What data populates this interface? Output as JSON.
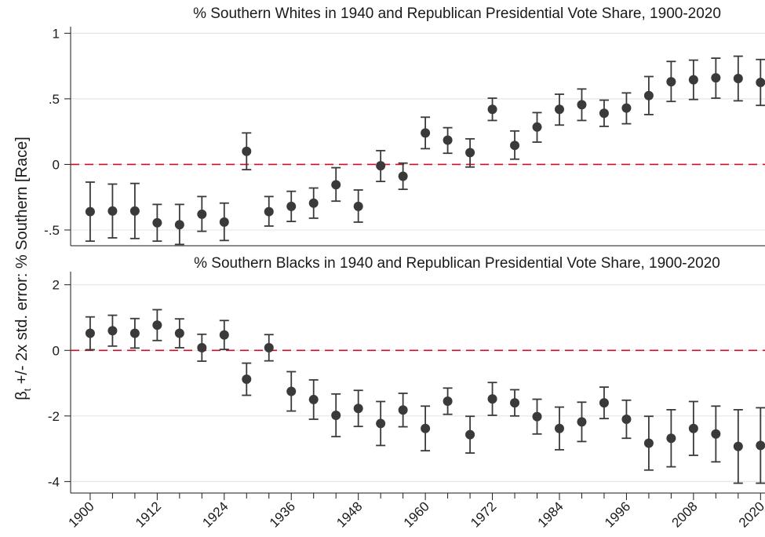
{
  "ylabel": {
    "beta": "β",
    "subscript": "t",
    "rest": " +/- 2x std. error: % Southern [Race]"
  },
  "colors": {
    "point": "#3a3a3a",
    "zero_line": "#c8102e",
    "grid": "#e6e6e6",
    "axis": "#1a1a1a",
    "panel_header_bg": "#ffffff"
  },
  "chart_data": [
    {
      "type": "scatter",
      "title": "% Southern Whites in 1940 and Republican Presidential Vote Share, 1900-2020",
      "xlabel": "",
      "ylabel": "",
      "ylim": [
        -0.62,
        1.05
      ],
      "yticks": [
        1,
        0.5,
        0,
        -0.5
      ],
      "ytick_labels": [
        "1",
        ".5",
        "0",
        "-.5"
      ],
      "reference_line": 0,
      "grid": true,
      "x": [
        1900,
        1904,
        1908,
        1912,
        1916,
        1920,
        1924,
        1928,
        1932,
        1936,
        1940,
        1944,
        1948,
        1952,
        1956,
        1960,
        1964,
        1968,
        1972,
        1976,
        1980,
        1984,
        1988,
        1992,
        1996,
        2000,
        2004,
        2008,
        2012,
        2016,
        2020
      ],
      "values": [
        -0.36,
        -0.355,
        -0.355,
        -0.445,
        -0.46,
        -0.38,
        -0.44,
        0.1,
        -0.36,
        -0.32,
        -0.295,
        -0.155,
        -0.32,
        -0.01,
        -0.09,
        0.24,
        0.185,
        0.09,
        0.42,
        0.145,
        0.285,
        0.42,
        0.455,
        0.39,
        0.43,
        0.525,
        0.63,
        0.645,
        0.66,
        0.655,
        0.625
      ],
      "lower": [
        -0.585,
        -0.56,
        -0.565,
        -0.585,
        -0.61,
        -0.51,
        -0.58,
        -0.04,
        -0.47,
        -0.435,
        -0.41,
        -0.28,
        -0.44,
        -0.13,
        -0.19,
        0.12,
        0.085,
        -0.02,
        0.335,
        0.04,
        0.17,
        0.3,
        0.335,
        0.29,
        0.31,
        0.38,
        0.48,
        0.495,
        0.505,
        0.485,
        0.45
      ],
      "upper": [
        -0.135,
        -0.15,
        -0.145,
        -0.305,
        -0.305,
        -0.245,
        -0.295,
        0.24,
        -0.245,
        -0.205,
        -0.18,
        -0.025,
        -0.195,
        0.105,
        0.01,
        0.36,
        0.28,
        0.195,
        0.505,
        0.255,
        0.395,
        0.535,
        0.575,
        0.49,
        0.545,
        0.67,
        0.785,
        0.795,
        0.81,
        0.825,
        0.8
      ]
    },
    {
      "type": "scatter",
      "title": "% Southern Blacks in 1940 and Republican Presidential Vote Share, 1900-2020",
      "xlabel": "",
      "ylabel": "",
      "ylim": [
        -4.35,
        2.4
      ],
      "yticks": [
        2,
        0,
        -2,
        -4
      ],
      "ytick_labels": [
        "2",
        "0",
        "-2",
        "-4"
      ],
      "reference_line": 0,
      "grid": true,
      "x": [
        1900,
        1904,
        1908,
        1912,
        1916,
        1920,
        1924,
        1928,
        1932,
        1936,
        1940,
        1944,
        1948,
        1952,
        1956,
        1960,
        1964,
        1968,
        1972,
        1976,
        1980,
        1984,
        1988,
        1992,
        1996,
        2000,
        2004,
        2008,
        2012,
        2016,
        2020
      ],
      "values": [
        0.52,
        0.6,
        0.52,
        0.77,
        0.52,
        0.08,
        0.47,
        -0.88,
        0.08,
        -1.25,
        -1.5,
        -1.98,
        -1.77,
        -2.23,
        -1.82,
        -2.38,
        -1.55,
        -2.57,
        -1.48,
        -1.6,
        -2.02,
        -2.38,
        -2.18,
        -1.6,
        -2.1,
        -2.83,
        -2.68,
        -2.38,
        -2.55,
        -2.93,
        -2.9
      ],
      "lower": [
        0.02,
        0.13,
        0.07,
        0.3,
        0.08,
        -0.33,
        0.03,
        -1.37,
        -0.32,
        -1.85,
        -2.1,
        -2.63,
        -2.32,
        -2.9,
        -2.33,
        -3.06,
        -1.95,
        -3.13,
        -1.98,
        -2.0,
        -2.55,
        -3.03,
        -2.78,
        -2.08,
        -2.68,
        -3.65,
        -3.55,
        -3.2,
        -3.4,
        -4.05,
        -4.05
      ],
      "upper": [
        1.02,
        1.07,
        0.97,
        1.24,
        0.96,
        0.49,
        0.91,
        -0.39,
        0.48,
        -0.65,
        -0.9,
        -1.33,
        -1.22,
        -1.56,
        -1.31,
        -1.7,
        -1.15,
        -2.01,
        -0.98,
        -1.2,
        -1.49,
        -1.73,
        -1.58,
        -1.12,
        -1.52,
        -2.01,
        -1.81,
        -1.56,
        -1.7,
        -1.81,
        -1.75
      ]
    }
  ],
  "x_axis": {
    "ticks": [
      1900,
      1904,
      1908,
      1912,
      1916,
      1920,
      1924,
      1928,
      1932,
      1936,
      1940,
      1944,
      1948,
      1952,
      1956,
      1960,
      1964,
      1968,
      1972,
      1976,
      1980,
      1984,
      1988,
      1992,
      1996,
      2000,
      2004,
      2008,
      2012,
      2016,
      2020
    ],
    "labeled_ticks": [
      "1900",
      "1912",
      "1924",
      "1936",
      "1948",
      "1960",
      "1972",
      "1984",
      "1996",
      "2008",
      "2020"
    ],
    "xlim": [
      1896.5,
      2020.8
    ]
  }
}
